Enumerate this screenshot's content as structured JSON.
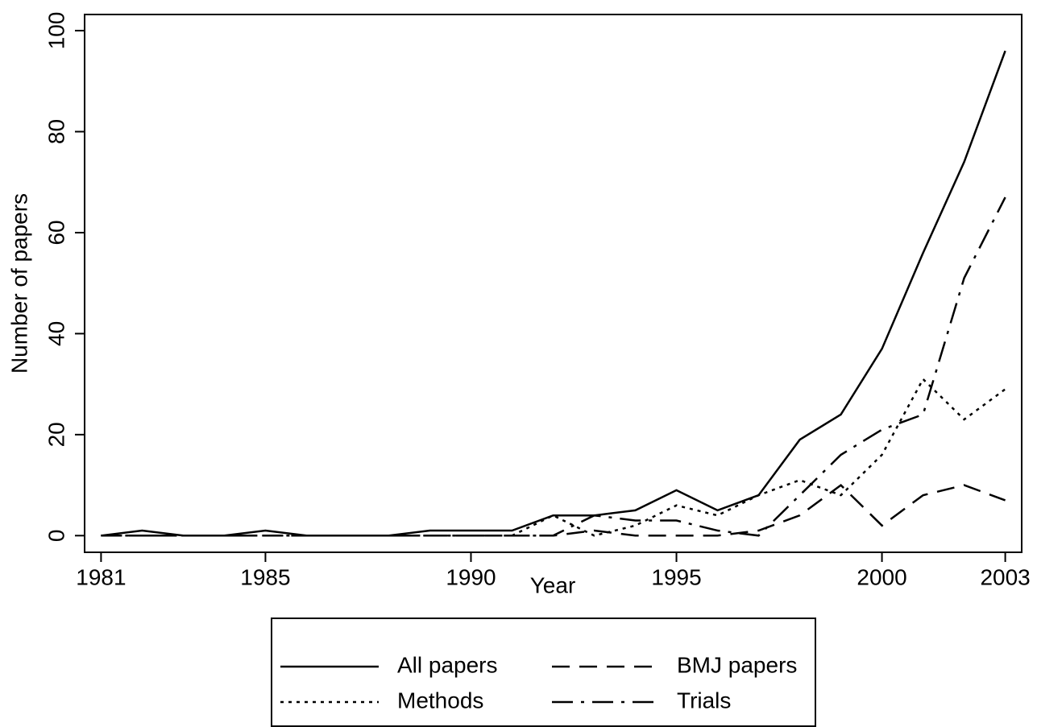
{
  "chart_data": {
    "type": "line",
    "x_label": "Year",
    "y_label": "Number of papers",
    "x": [
      1981,
      1982,
      1983,
      1984,
      1985,
      1986,
      1987,
      1988,
      1989,
      1990,
      1991,
      1992,
      1993,
      1994,
      1995,
      1996,
      1997,
      1998,
      1999,
      2000,
      2001,
      2002,
      2003
    ],
    "series": [
      {
        "name": "All papers",
        "color": "#000000",
        "dash": "solid",
        "values": [
          0,
          1,
          0,
          0,
          1,
          0,
          0,
          0,
          1,
          1,
          1,
          4,
          4,
          5,
          9,
          5,
          8,
          19,
          24,
          37,
          56,
          74,
          96
        ]
      },
      {
        "name": "BMJ papers",
        "color": "#000000",
        "dash": "dashed",
        "values": [
          0,
          0,
          0,
          0,
          0,
          0,
          0,
          0,
          0,
          0,
          0,
          0,
          1,
          0,
          0,
          0,
          1,
          4,
          10,
          2,
          8,
          10,
          7
        ]
      },
      {
        "name": "Methods",
        "color": "#000000",
        "dash": "dotted",
        "values": [
          0,
          0,
          0,
          0,
          0,
          0,
          0,
          0,
          0,
          0,
          0,
          4,
          0,
          2,
          6,
          4,
          8,
          11,
          8,
          16,
          31,
          23,
          29
        ]
      },
      {
        "name": "Trials",
        "color": "#000000",
        "dash": "dashdot",
        "values": [
          0,
          0,
          0,
          0,
          0,
          0,
          0,
          0,
          0,
          0,
          0,
          0,
          4,
          3,
          3,
          1,
          0,
          8,
          16,
          21,
          24,
          51,
          67
        ]
      }
    ],
    "xlim": [
      1980.6,
      2003.4
    ],
    "ylim": [
      -3.3,
      103.2
    ],
    "xticks": [
      1981,
      1985,
      1990,
      1995,
      2000,
      2003
    ],
    "yticks": [
      0,
      20,
      40,
      60,
      80,
      100
    ],
    "legend": "bottom"
  }
}
